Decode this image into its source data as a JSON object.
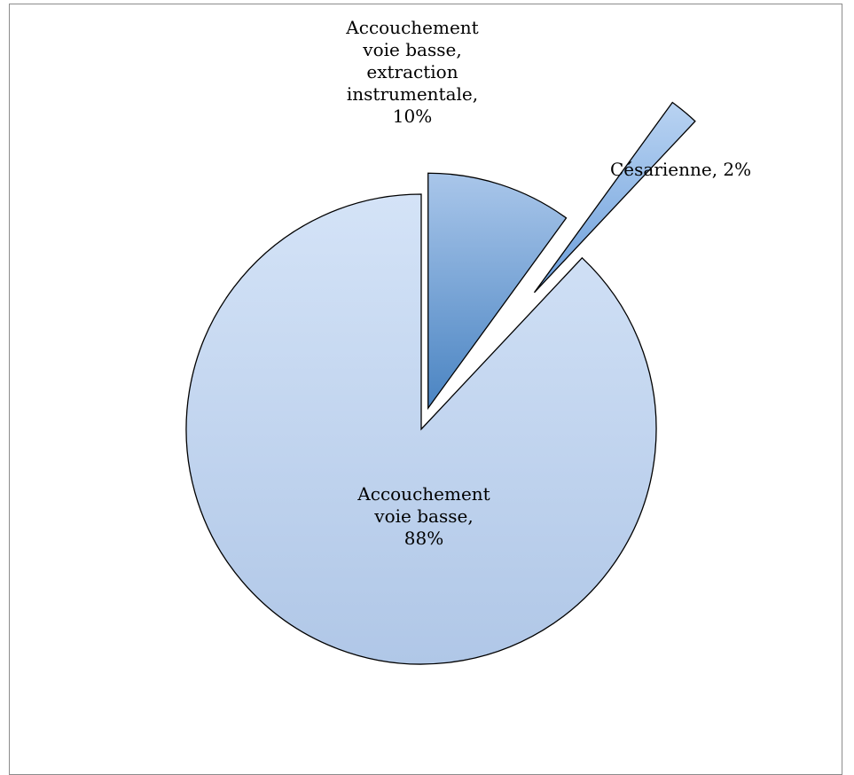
{
  "chart_data": {
    "type": "pie",
    "slices": [
      {
        "label": "Accouchement voie basse",
        "value": 88,
        "display": "88%"
      },
      {
        "label": "Accouchement voie basse, extraction instrumentale",
        "value": 10,
        "display": "10%"
      },
      {
        "label": "Césarienne",
        "value": 2,
        "display": "2%"
      }
    ],
    "labels": {
      "main": {
        "line1": "Accouchement",
        "line2": "voie basse,",
        "line3": "88%"
      },
      "instrumental": {
        "line1": "Accouchement",
        "line2": "voie basse,",
        "line3": "extraction",
        "line4": "instrumentale,",
        "line5": "10%"
      },
      "cesarean": {
        "text": "Césarienne, 2%"
      }
    },
    "colors": {
      "main_light": "#d4e3f7",
      "main_dark": "#b0c7e7",
      "instr_light": "#a9c6ea",
      "instr_dark": "#4a84c2",
      "ces_light": "#b9d3f2",
      "ces_dark": "#6c9fdb"
    },
    "explode": "small slices pulled out"
  }
}
